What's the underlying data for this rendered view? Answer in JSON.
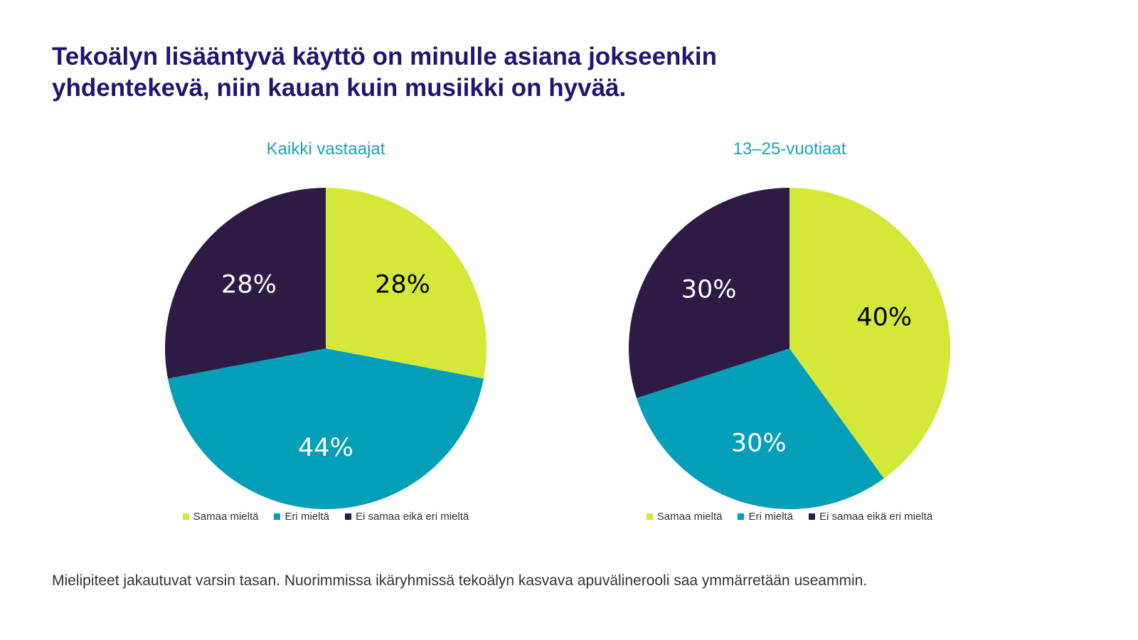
{
  "page": {
    "title_lines": [
      "Tekoälyn lisääntyvä käyttö on minulle asiana jokseenkin",
      "yhdentekevä, niin kauan kuin musiikki on hyvää."
    ],
    "footnote": "Mielipiteet jakautuvat varsin tasan. Nuorimmissa ikäryhmissä tekoälyn kasvava apuvälinerooli saa ymmärretään useammin."
  },
  "colors": {
    "title": "#1f1670",
    "subtitle": "#1aa3b9",
    "slice_colors": [
      "#d4e83a",
      "#039fb8",
      "#2d1b45"
    ],
    "label_colors": [
      "#000000",
      "#ffffff",
      "#ffffff"
    ]
  },
  "chart_data": [
    {
      "type": "pie",
      "title": "Kaikki vastaajat",
      "categories": [
        "Samaa mieltä",
        "Eri mieltä",
        "Ei samaa eikä eri mieltä"
      ],
      "values": [
        28,
        44,
        28
      ],
      "labels": [
        "28%",
        "44%",
        "28%"
      ],
      "legend": "bottom"
    },
    {
      "type": "pie",
      "title": "13–25-vuotiaat",
      "categories": [
        "Samaa mieltä",
        "Eri mieltä",
        "Ei samaa eikä eri mieltä"
      ],
      "values": [
        40,
        30,
        30
      ],
      "labels": [
        "40%",
        "30%",
        "30%"
      ],
      "legend": "bottom"
    }
  ]
}
